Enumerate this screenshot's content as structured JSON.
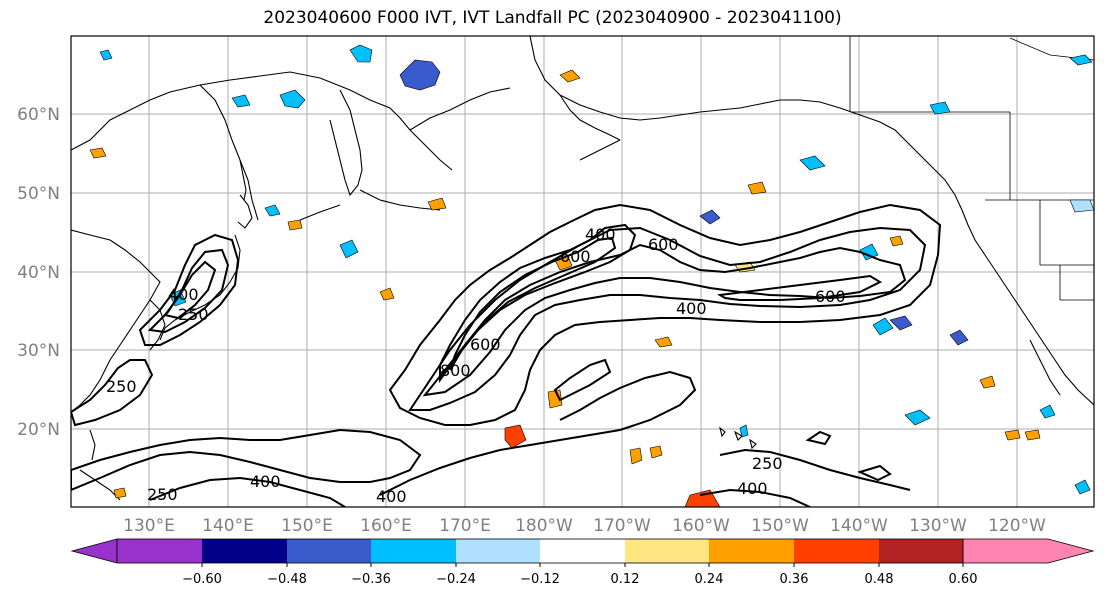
{
  "title": "2023040600 F000 IVT, IVT Landfall PC (2023040900 - 2023041100)",
  "lat_labels": [
    "60°N",
    "50°N",
    "40°N",
    "30°N",
    "20°N"
  ],
  "lon_labels": [
    "130°E",
    "140°E",
    "150°E",
    "160°E",
    "170°E",
    "180°W",
    "170°W",
    "160°W",
    "150°W",
    "140°W",
    "130°W",
    "120°W"
  ],
  "contour_labels": [
    "600",
    "400",
    "600",
    "250",
    "400",
    "400",
    "250",
    "400",
    "250",
    "400",
    "600",
    "800",
    "600",
    "400",
    "250"
  ],
  "colorbar": {
    "ticks": [
      "−0.60",
      "−0.48",
      "−0.36",
      "−0.24",
      "−0.12",
      "0.12",
      "0.24",
      "0.36",
      "0.48",
      "0.60"
    ],
    "colors": [
      "#9932cc",
      "#00008b",
      "#3a5bcc",
      "#00bfff",
      "#b0e0ff",
      "#ffffff",
      "#ffe680",
      "#ffa000",
      "#ff4000",
      "#b22222",
      "#ff85b0"
    ]
  }
}
